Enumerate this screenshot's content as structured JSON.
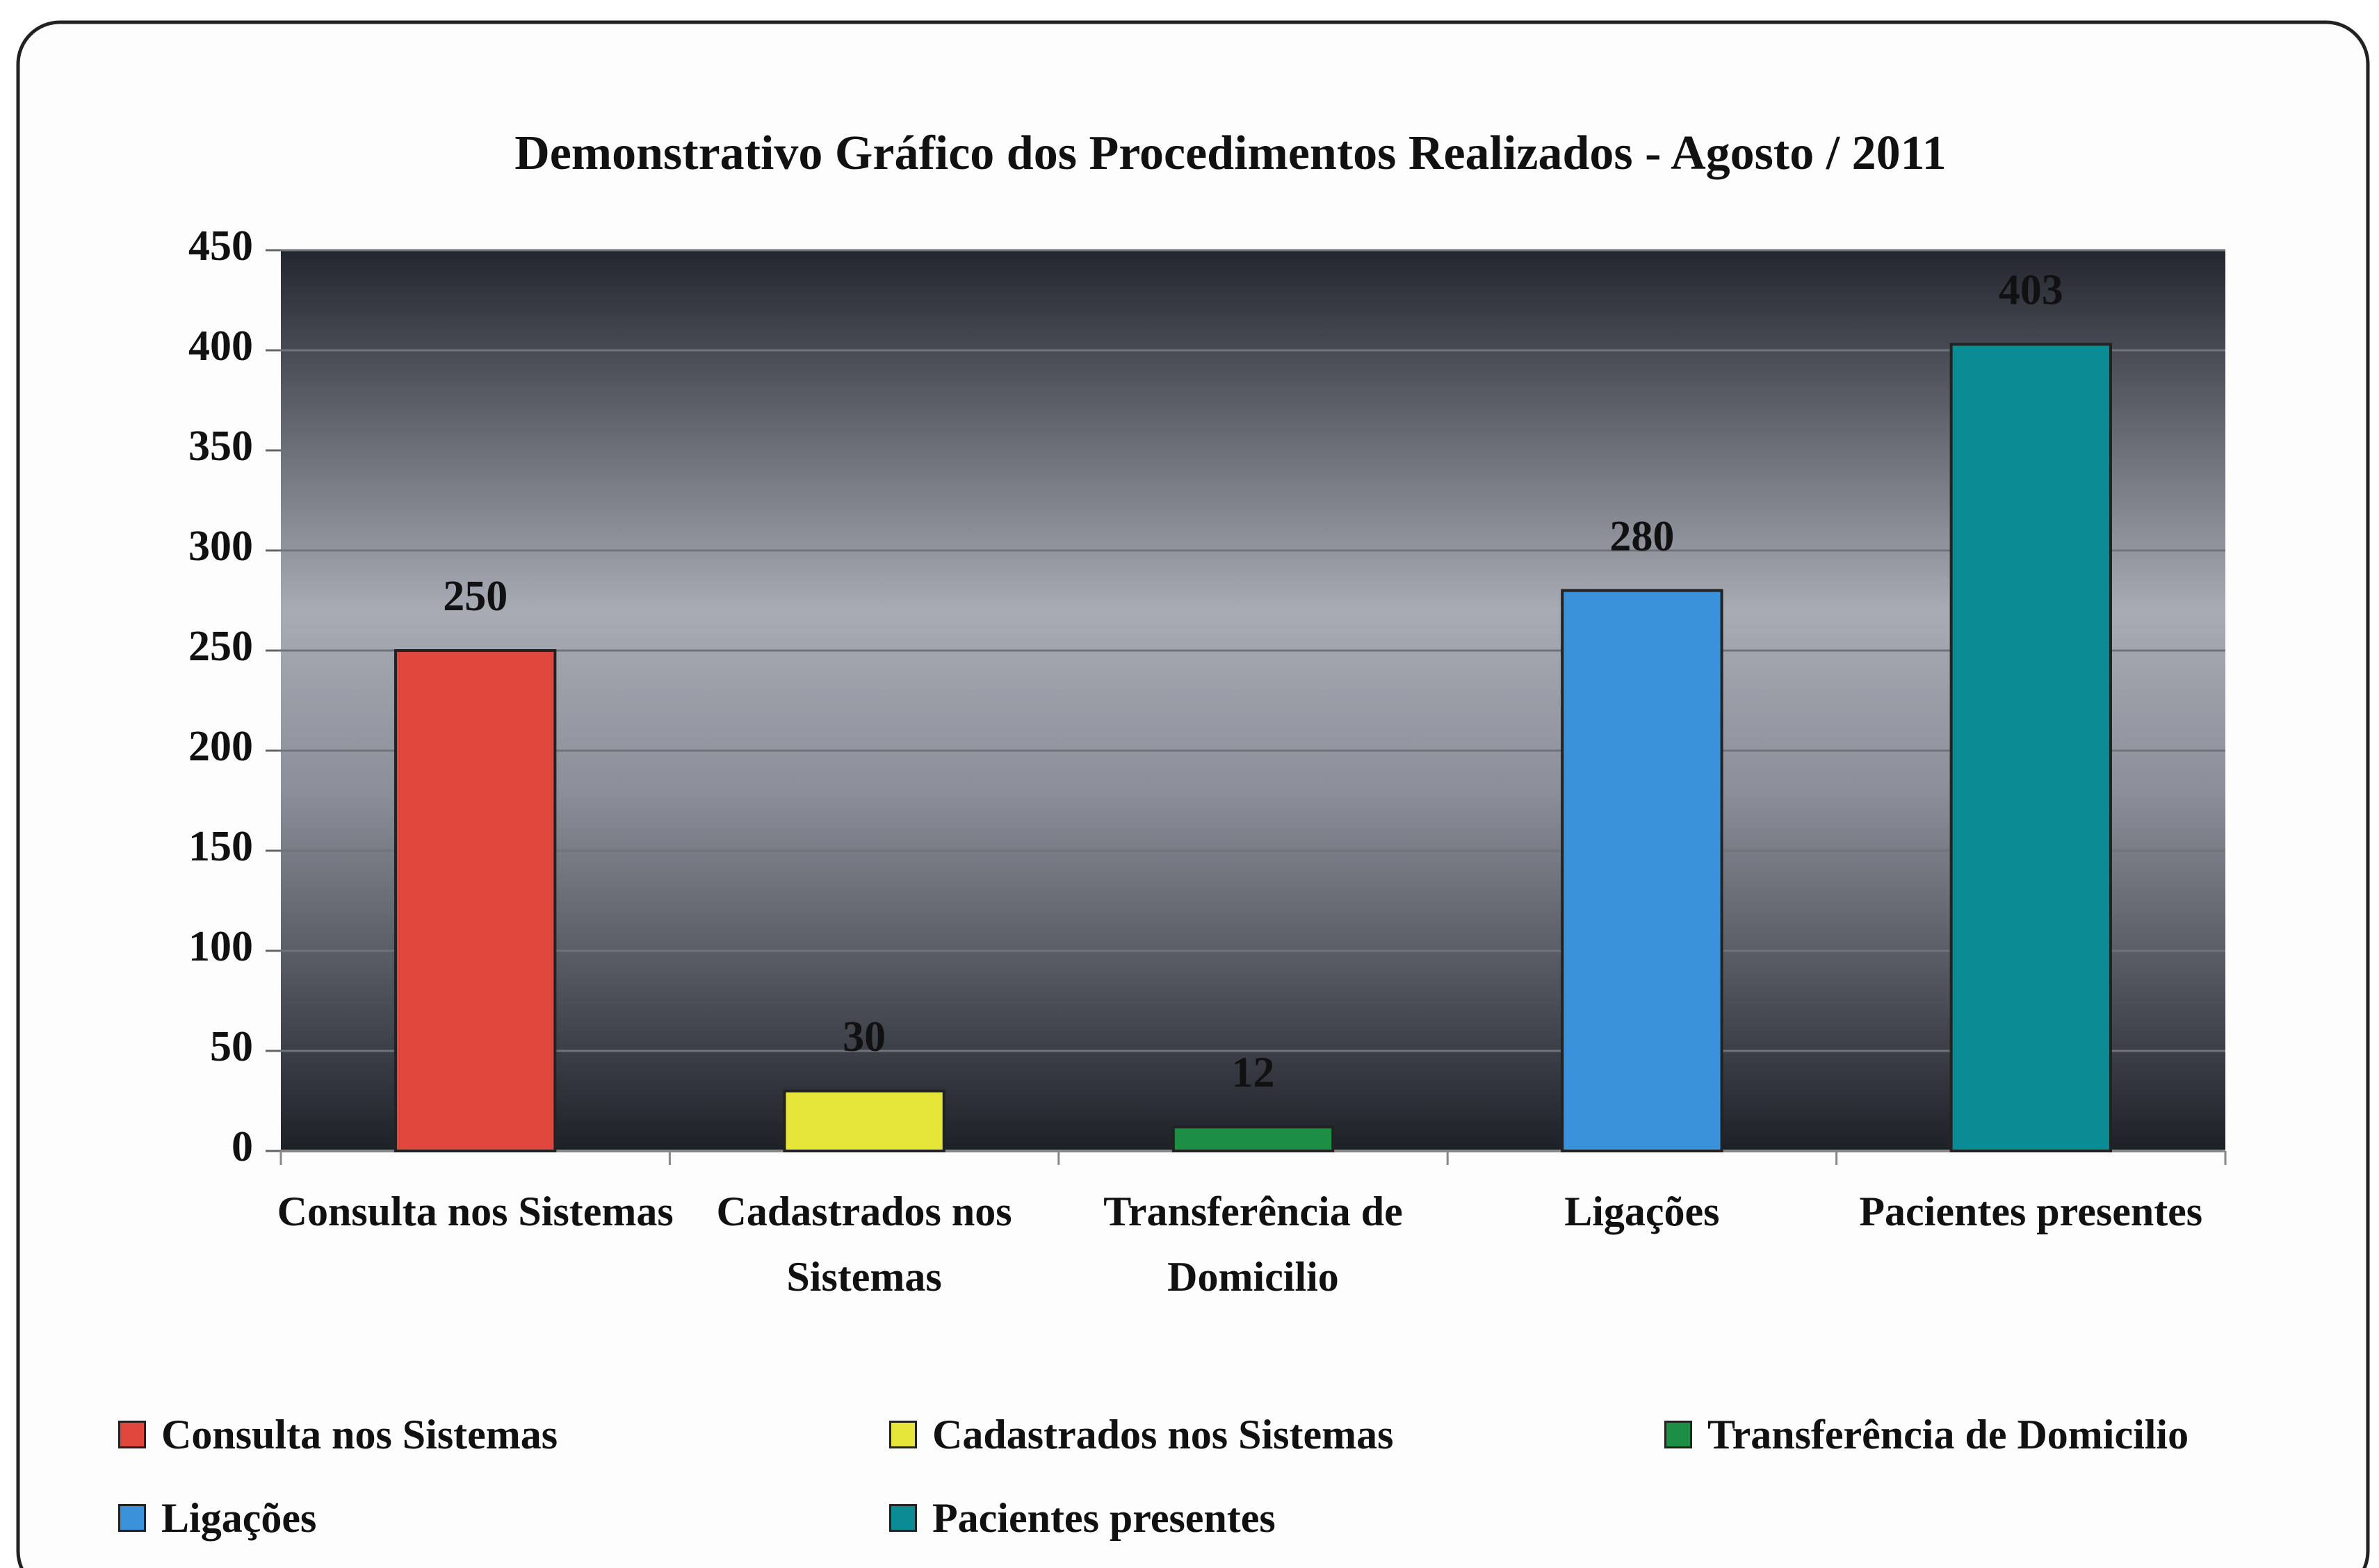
{
  "chart_data": {
    "type": "bar",
    "title": "Demonstrativo Gráfico dos Procedimentos Realizados - Agosto / 2011",
    "categories": [
      "Consulta nos Sistemas",
      "Cadastrados nos Sistemas",
      "Transferência de Domicilio",
      "Ligações",
      "Pacientes presentes"
    ],
    "values": [
      250,
      30,
      12,
      280,
      403
    ],
    "colors": [
      "#e0473d",
      "#e6e63a",
      "#1c8f44",
      "#3a92da",
      "#0b8b93"
    ],
    "ylim": [
      0,
      450
    ],
    "yticks": [
      0,
      50,
      100,
      150,
      200,
      250,
      300,
      350,
      400,
      450
    ],
    "grid": true,
    "legend": "bottom"
  }
}
